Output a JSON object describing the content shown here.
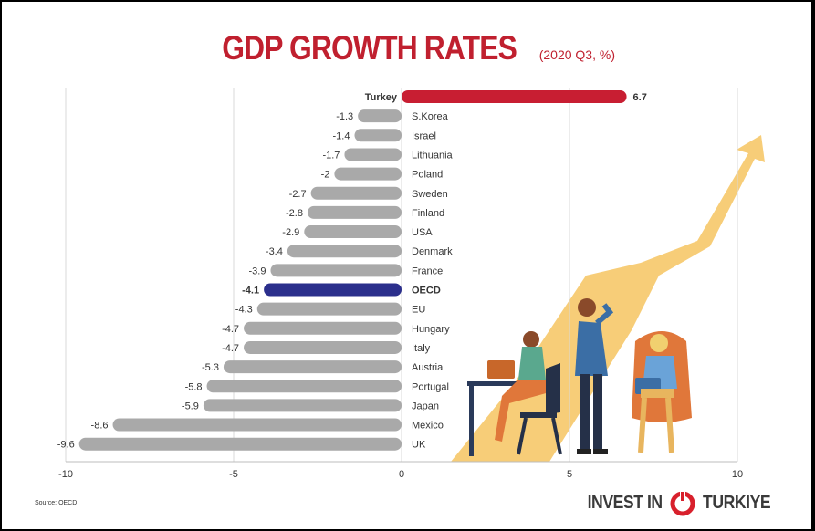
{
  "title": "GDP GROWTH RATES",
  "subtitle": "(2020 Q3, %)",
  "source": "Source: OECD",
  "logo": {
    "left": "INVEST IN",
    "right": "TURKIYE"
  },
  "colors": {
    "title": "#c0202f",
    "highlight_turkey": "#c81e32",
    "highlight_oecd": "#2b2f8c",
    "bars": "#a9a9a9",
    "arrow": "#f7cd78"
  },
  "chart_data": {
    "type": "bar",
    "orientation": "horizontal",
    "title": "GDP GROWTH RATES",
    "subtitle": "(2020 Q3, %)",
    "xlim": [
      -10,
      10
    ],
    "xticks": [
      "-10",
      "-5",
      "0",
      "5",
      "10"
    ],
    "grid": "vertical",
    "categories": [
      "Turkey",
      "S.Korea",
      "Israel",
      "Lithuania",
      "Poland",
      "Sweden",
      "Finland",
      "USA",
      "Denmark",
      "France",
      "OECD",
      "EU",
      "Hungary",
      "Italy",
      "Austria",
      "Portugal",
      "Japan",
      "Mexico",
      "UK"
    ],
    "values": [
      6.7,
      -1.3,
      -1.4,
      -1.7,
      -2,
      -2.7,
      -2.8,
      -2.9,
      -3.4,
      -3.9,
      -4.1,
      -4.3,
      -4.7,
      -4.7,
      -5.3,
      -5.8,
      -5.9,
      -8.6,
      -9.6
    ],
    "value_labels": [
      "6.7",
      "-1.3",
      "-1.4",
      "-1.7",
      "-2",
      "-2.7",
      "-2.8",
      "-2.9",
      "-3.4",
      "-3.9",
      "-4.1",
      "-4.3",
      "-4.7",
      "-4.7",
      "-5.3",
      "-5.8",
      "-5.9",
      "-8.6",
      "-9.6"
    ],
    "highlight": [
      "Turkey",
      "OECD"
    ]
  }
}
